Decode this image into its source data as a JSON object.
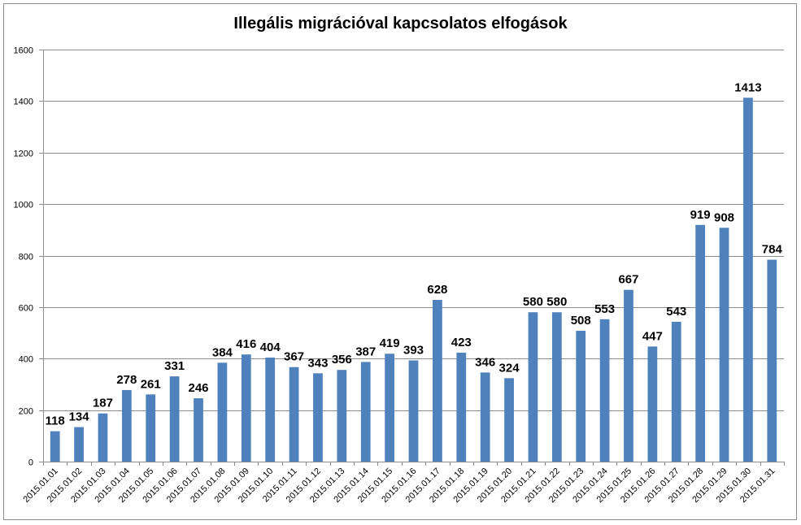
{
  "chart_data": {
    "type": "bar",
    "title": "Illegális migrációval kapcsolatos elfogások",
    "xlabel": "",
    "ylabel": "",
    "ylim": [
      0,
      1600
    ],
    "yticks": [
      0,
      200,
      400,
      600,
      800,
      1000,
      1200,
      1400,
      1600
    ],
    "grid": true,
    "legend": "none",
    "bar_color": "#4f81bd",
    "categories": [
      "2015.01.01",
      "2015.01.02",
      "2015.01.03",
      "2015.01.04",
      "2015.01.05",
      "2015.01.06",
      "2015.01.07",
      "2015.01.08",
      "2015.01.09",
      "2015.01.10",
      "2015.01.11",
      "2015.01.12",
      "2015.01.13",
      "2015.01.14",
      "2015.01.15",
      "2015.01.16",
      "2015.01.17",
      "2015.01.18",
      "2015.01.19",
      "2015.01.20",
      "2015.01.21",
      "2015.01.22",
      "2015.01.23",
      "2015.01.24",
      "2015.01.25",
      "2015.01.26",
      "2015.01.27",
      "2015.01.28",
      "2015.01.29",
      "2015.01.30",
      "2015.01.31"
    ],
    "values": [
      118,
      134,
      187,
      278,
      261,
      331,
      246,
      384,
      416,
      404,
      367,
      343,
      356,
      387,
      419,
      393,
      628,
      423,
      346,
      324,
      580,
      580,
      508,
      553,
      667,
      447,
      543,
      919,
      908,
      1413,
      784
    ]
  }
}
